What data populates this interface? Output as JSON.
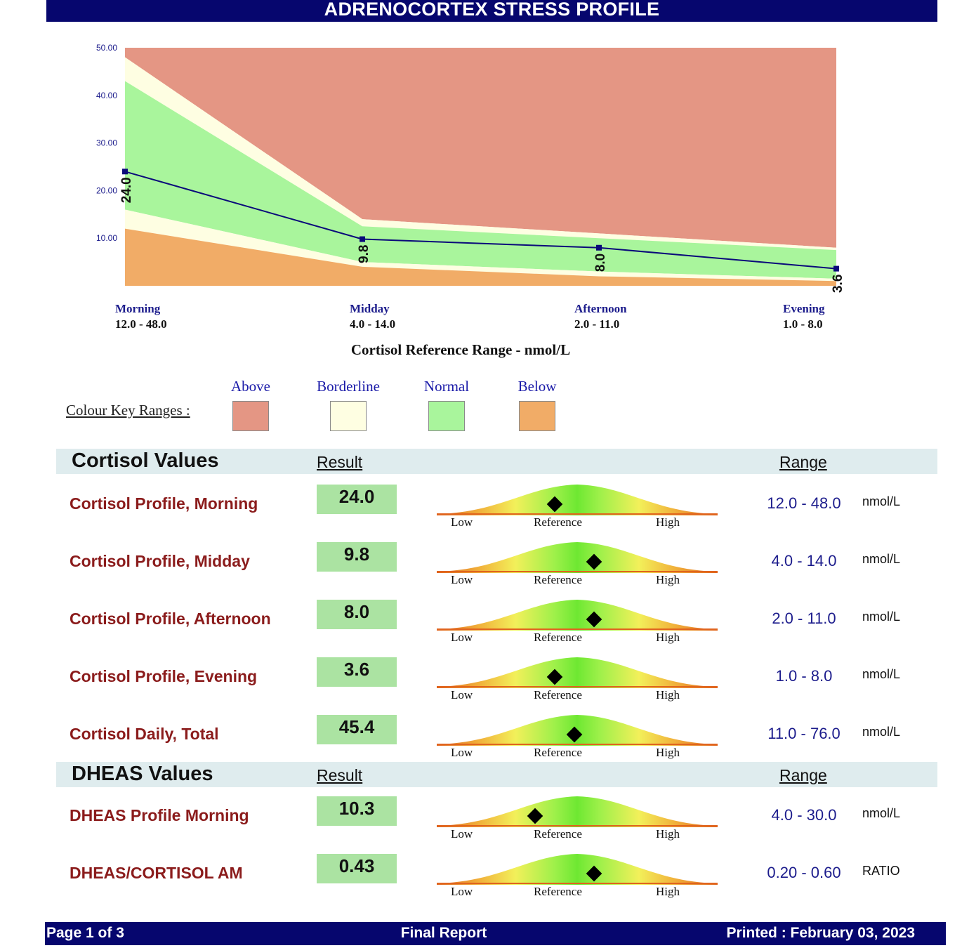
{
  "header": {
    "title": "ADRENOCORTEX STRESS PROFILE"
  },
  "chart_data": {
    "type": "area",
    "ylim": [
      0,
      50
    ],
    "y_ticks": [
      "50.00",
      "40.00",
      "30.00",
      "20.00",
      "10.00"
    ],
    "categories": [
      "Morning",
      "Midday",
      "Afternoon",
      "Evening"
    ],
    "category_ranges": [
      "12.0 - 48.0",
      "4.0 - 14.0",
      "2.0 - 11.0",
      "1.0 - 8.0"
    ],
    "xlabel": "Cortisol Reference Range - nmol/L",
    "bands": {
      "below_top": [
        12,
        4,
        2,
        1
      ],
      "borderline_low_top": [
        16,
        5,
        3,
        1.5
      ],
      "normal_top": [
        43,
        12.5,
        10,
        7.5
      ],
      "borderline_high_top": [
        48,
        14,
        11,
        8
      ],
      "above_top": [
        50,
        50,
        50,
        50
      ]
    },
    "series": [
      {
        "values": [
          24.0,
          9.8,
          8.0,
          3.6
        ],
        "labels": [
          "24.0",
          "9.8",
          "8.0",
          "3.6"
        ]
      }
    ],
    "colors": {
      "above": "#e49684",
      "borderline": "#fefee2",
      "normal": "#a9f59c",
      "below": "#f1ac67",
      "line": "#0a0a7a"
    }
  },
  "legend": {
    "key_label": "Colour Key Ranges :",
    "items": [
      {
        "label": "Above",
        "color": "#e49684"
      },
      {
        "label": "Borderline",
        "color": "#fefee2"
      },
      {
        "label": "Normal",
        "color": "#a9f59c"
      },
      {
        "label": "Below",
        "color": "#f1ac67"
      }
    ]
  },
  "gauge_labels": {
    "low": "Low",
    "reference": "Reference",
    "high": "High"
  },
  "sections": [
    {
      "title": "Cortisol Values",
      "result_header": "Result",
      "range_header": "Range",
      "rows": [
        {
          "name": "Cortisol Profile, Morning",
          "result": "24.0",
          "range": "12.0 - 48.0",
          "unit": "nmol/L",
          "position": 0.42
        },
        {
          "name": "Cortisol Profile, Midday",
          "result": "9.8",
          "range": "4.0 - 14.0",
          "unit": "nmol/L",
          "position": 0.56
        },
        {
          "name": "Cortisol Profile, Afternoon",
          "result": "8.0",
          "range": "2.0 - 11.0",
          "unit": "nmol/L",
          "position": 0.56
        },
        {
          "name": "Cortisol Profile, Evening",
          "result": "3.6",
          "range": "1.0 - 8.0",
          "unit": "nmol/L",
          "position": 0.42
        },
        {
          "name": "Cortisol Daily, Total",
          "result": "45.4",
          "range": "11.0 - 76.0",
          "unit": "nmol/L",
          "position": 0.49
        }
      ]
    },
    {
      "title": "DHEAS Values",
      "result_header": "Result",
      "range_header": "Range",
      "rows": [
        {
          "name": "DHEAS Profile Morning",
          "result": "10.3",
          "range": "4.0 - 30.0",
          "unit": "nmol/L",
          "position": 0.35
        },
        {
          "name": "DHEAS/CORTISOL AM",
          "result": "0.43",
          "range": "0.20 - 0.60",
          "unit": "RATIO",
          "position": 0.56
        }
      ]
    }
  ],
  "footer": {
    "page": "Page 1 of 3",
    "status": "Final Report",
    "printed": "Printed : February 03, 2023"
  }
}
